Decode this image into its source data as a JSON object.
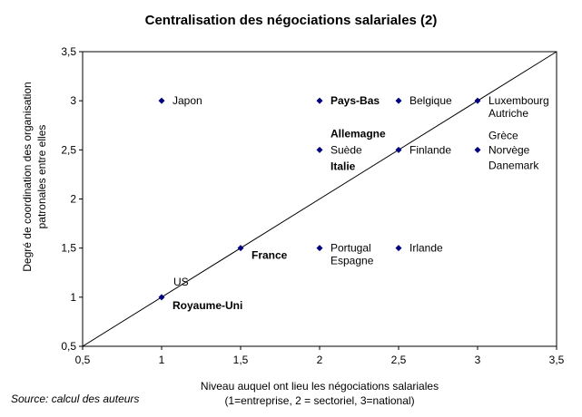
{
  "chart_data": {
    "type": "scatter",
    "title": "Centralisation des négociations salariales (2)",
    "xlabel_line1": "Niveau auquel ont lieu les négociations salariales",
    "xlabel_line2": "(1=entreprise, 2 = sectoriel, 3=national)",
    "ylabel_line1": "Degré de coordination des organisation",
    "ylabel_line2": "patronales entre elles",
    "xlim": [
      0.5,
      3.5
    ],
    "ylim": [
      0.5,
      3.5
    ],
    "xticks": [
      "0,5",
      "1",
      "1,5",
      "2",
      "2,5",
      "3",
      "3,5"
    ],
    "yticks": [
      "0,5",
      "1",
      "1,5",
      "2",
      "2,5",
      "3",
      "3,5"
    ],
    "grid": false,
    "diagonal": true,
    "marker_color": "#000080",
    "points": [
      {
        "x": 1,
        "y": 3,
        "labels": [
          "Japon"
        ],
        "bold": false
      },
      {
        "x": 2,
        "y": 3,
        "labels": [
          "Pays-Bas"
        ],
        "bold": true
      },
      {
        "x": 2.5,
        "y": 3,
        "labels": [
          "Belgique"
        ],
        "bold": false
      },
      {
        "x": 3,
        "y": 3,
        "labels": [
          "Luxembourg",
          "Autriche"
        ],
        "bold": false
      },
      {
        "x": 2,
        "y": 2.5,
        "labels": [
          "Allemagne",
          "Suède",
          "Italie"
        ],
        "bold_flags": [
          true,
          false,
          true
        ]
      },
      {
        "x": 2.5,
        "y": 2.5,
        "labels": [
          "Finlande"
        ],
        "bold": false
      },
      {
        "x": 3,
        "y": 2.5,
        "labels": [
          "Grèce",
          "Norvège",
          "Danemark"
        ],
        "bold": false
      },
      {
        "x": 1.5,
        "y": 1.5,
        "labels": [
          "France"
        ],
        "bold": true
      },
      {
        "x": 2,
        "y": 1.5,
        "labels": [
          "Portugal",
          "Espagne"
        ],
        "bold": false
      },
      {
        "x": 2.5,
        "y": 1.5,
        "labels": [
          "Irlande"
        ],
        "bold": false
      },
      {
        "x": 1,
        "y": 1,
        "labels": [
          "US",
          "Royaume-Uni"
        ],
        "bold_flags": [
          false,
          true
        ]
      }
    ]
  },
  "source": "Source: calcul des auteurs"
}
